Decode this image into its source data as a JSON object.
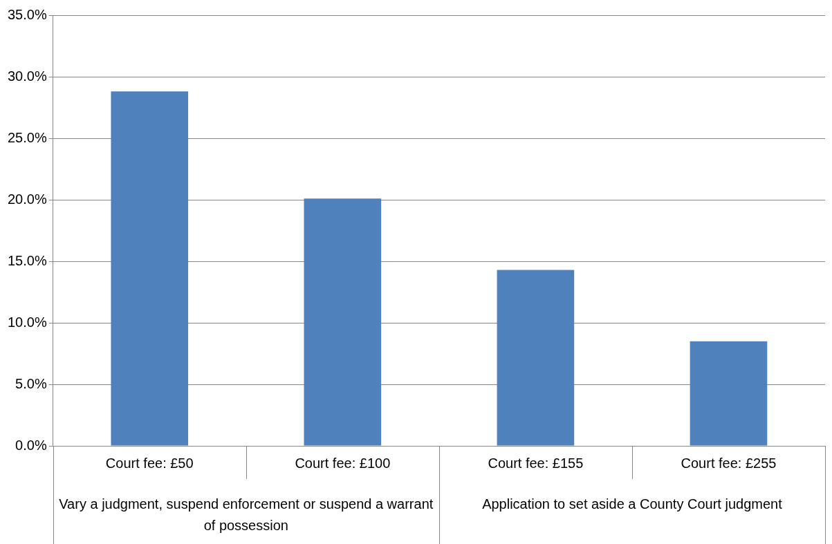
{
  "chart_data": {
    "type": "bar",
    "categories": [
      "Court fee: £50",
      "Court fee: £100",
      "Court fee: £155",
      "Court fee: £255"
    ],
    "values": [
      28.8,
      20.1,
      14.3,
      8.5
    ],
    "color": "#4f81bd",
    "ylim": [
      0,
      35
    ],
    "yticks": [
      {
        "value": 0,
        "label": "0.0%"
      },
      {
        "value": 5,
        "label": "5.0%"
      },
      {
        "value": 10,
        "label": "10.0%"
      },
      {
        "value": 15,
        "label": "15.0%"
      },
      {
        "value": 20,
        "label": "20.0%"
      },
      {
        "value": 25,
        "label": "25.0%"
      },
      {
        "value": 30,
        "label": "30.0%"
      },
      {
        "value": 35,
        "label": "35.0%"
      }
    ],
    "grid": "y",
    "annotations": [
      "Vary a judgment, suspend enforcement or suspend a warrant of possession",
      "Application to set aside a County Court judgment"
    ]
  }
}
